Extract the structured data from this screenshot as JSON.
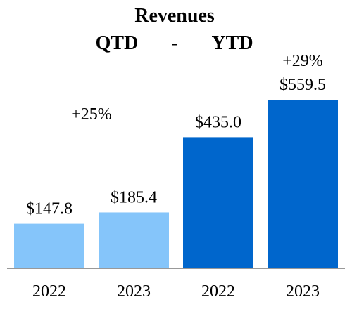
{
  "chart_data": {
    "type": "bar",
    "title": "Revenues",
    "subtitle_left": "QTD",
    "subtitle_sep": "-",
    "subtitle_right": "YTD",
    "categories": [
      "2022",
      "2023",
      "2022",
      "2023"
    ],
    "values": [
      147.8,
      185.4,
      435.0,
      559.5
    ],
    "value_labels": [
      "$147.8",
      "$185.4",
      "$435.0",
      "$559.5"
    ],
    "groups": [
      "QTD",
      "QTD",
      "YTD",
      "YTD"
    ],
    "growth_labels": [
      {
        "text": "+25%",
        "group": "QTD"
      },
      {
        "text": "+29%",
        "group": "YTD"
      }
    ],
    "colors": {
      "QTD": "#85c5fa",
      "YTD": "#0066cc",
      "axis": "#999999"
    },
    "xlabel": "",
    "ylabel": "",
    "ylim": [
      0,
      600
    ],
    "grid": false
  }
}
